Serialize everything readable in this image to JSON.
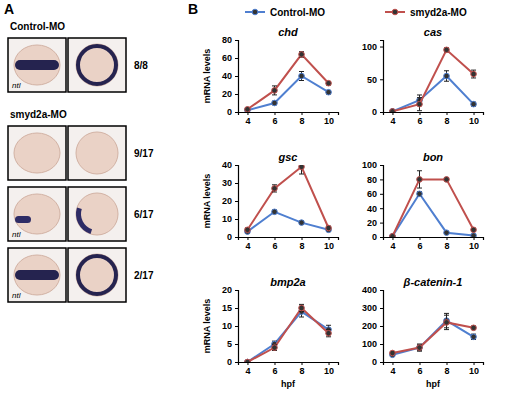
{
  "panel_a": {
    "label": "A",
    "groups": [
      {
        "name": "Control-MO",
        "rows": [
          {
            "count": "8/8",
            "stain": "ntl"
          }
        ]
      },
      {
        "name": "smyd2a-MO",
        "rows": [
          {
            "count": "9/17"
          },
          {
            "count": "6/17",
            "stain": "ntl"
          },
          {
            "count": "2/17",
            "stain": "ntl"
          }
        ]
      }
    ]
  },
  "panel_b": {
    "label": "B"
  },
  "chart_data": [
    {
      "type": "line",
      "title": "chd",
      "y_label": "mRNA levels",
      "legend": "top",
      "marker": "circle",
      "x": [
        4,
        6,
        8,
        10
      ],
      "xlim": [
        3.3,
        10.7
      ],
      "xticks": [
        4,
        6,
        8,
        10
      ],
      "ylim": [
        0,
        80
      ],
      "yticks": [
        0,
        20,
        40,
        60,
        80
      ],
      "series": [
        {
          "name": "Control-MO",
          "color": "#4f7fd0",
          "values": [
            2,
            10,
            40,
            22
          ],
          "errors": [
            1,
            2,
            5,
            2
          ]
        },
        {
          "name": "smyd2a-MO",
          "color": "#c0504d",
          "values": [
            3,
            24,
            64,
            32
          ],
          "errors": [
            1,
            5,
            3,
            2
          ]
        }
      ]
    },
    {
      "type": "line",
      "title": "cas",
      "marker": "circle",
      "x": [
        4,
        6,
        8,
        10
      ],
      "xlim": [
        3.3,
        10.7
      ],
      "xticks": [
        4,
        6,
        8,
        10
      ],
      "ylim": [
        0,
        110
      ],
      "yticks": [
        0,
        50,
        100
      ],
      "series": [
        {
          "name": "Control-MO",
          "color": "#4f7fd0",
          "values": [
            1,
            18,
            55,
            12
          ],
          "errors": [
            1,
            8,
            8,
            3
          ]
        },
        {
          "name": "smyd2a-MO",
          "color": "#c0504d",
          "values": [
            1,
            12,
            95,
            58
          ],
          "errors": [
            1,
            10,
            3,
            6
          ]
        }
      ]
    },
    {
      "type": "line",
      "title": "gsc",
      "y_label": "mRNA levels",
      "marker": "circle",
      "x": [
        4,
        6,
        8,
        10
      ],
      "xlim": [
        3.3,
        10.7
      ],
      "xticks": [
        4,
        6,
        8,
        10
      ],
      "ylim": [
        0,
        40
      ],
      "yticks": [
        0,
        10,
        20,
        30,
        40
      ],
      "series": [
        {
          "name": "Control-MO",
          "color": "#4f7fd0",
          "values": [
            3,
            14,
            8,
            4
          ],
          "errors": [
            1,
            1,
            1,
            1
          ]
        },
        {
          "name": "smyd2a-MO",
          "color": "#c0504d",
          "values": [
            4,
            27,
            39,
            5
          ],
          "errors": [
            1,
            2,
            4,
            1
          ]
        }
      ]
    },
    {
      "type": "line",
      "title": "bon",
      "marker": "circle",
      "x": [
        4,
        6,
        8,
        10
      ],
      "xlim": [
        3.3,
        10.7
      ],
      "xticks": [
        4,
        6,
        8,
        10
      ],
      "ylim": [
        0,
        100
      ],
      "yticks": [
        0,
        20,
        40,
        60,
        80,
        100
      ],
      "series": [
        {
          "name": "Control-MO",
          "color": "#4f7fd0",
          "values": [
            1,
            60,
            6,
            2
          ],
          "errors": [
            1,
            3,
            1,
            1
          ]
        },
        {
          "name": "smyd2a-MO",
          "color": "#c0504d",
          "values": [
            1,
            80,
            80,
            10
          ],
          "errors": [
            1,
            12,
            2,
            2
          ]
        }
      ]
    },
    {
      "type": "line",
      "title": "bmp2a",
      "y_label": "mRNA levels",
      "x_label": "hpf",
      "marker": "circle",
      "x": [
        4,
        6,
        8,
        10
      ],
      "xlim": [
        3.3,
        10.7
      ],
      "xticks": [
        4,
        6,
        8,
        10
      ],
      "ylim": [
        0,
        20
      ],
      "yticks": [
        0,
        5,
        10,
        15,
        20
      ],
      "series": [
        {
          "name": "Control-MO",
          "color": "#4f7fd0",
          "values": [
            0,
            5,
            14,
            9
          ],
          "errors": [
            0.3,
            0.8,
            1.5,
            1.2
          ]
        },
        {
          "name": "smyd2a-MO",
          "color": "#c0504d",
          "values": [
            0,
            4,
            15,
            8
          ],
          "errors": [
            0.3,
            0.8,
            1,
            1
          ]
        }
      ]
    },
    {
      "type": "line",
      "title": "β-catenin-1",
      "x_label": "hpf",
      "marker": "circle",
      "x": [
        4,
        6,
        8,
        10
      ],
      "xlim": [
        3.3,
        10.7
      ],
      "xticks": [
        4,
        6,
        8,
        10
      ],
      "ylim": [
        0,
        400
      ],
      "yticks": [
        0,
        100,
        200,
        300,
        400
      ],
      "series": [
        {
          "name": "Control-MO",
          "color": "#4f7fd0",
          "values": [
            40,
            80,
            230,
            140
          ],
          "errors": [
            5,
            20,
            40,
            15
          ]
        },
        {
          "name": "smyd2a-MO",
          "color": "#c0504d",
          "values": [
            50,
            80,
            220,
            190
          ],
          "errors": [
            5,
            15,
            40,
            10
          ]
        }
      ]
    }
  ]
}
